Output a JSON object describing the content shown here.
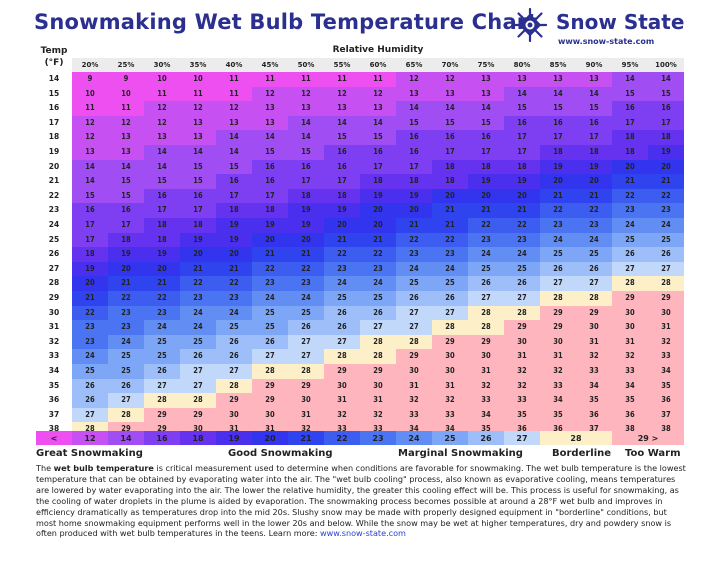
{
  "title": "Snowmaking Wet Bulb Temperature Chart",
  "brand": {
    "name": "Snow State",
    "url": "www.snow-state.com"
  },
  "headers": {
    "temp_line1": "Temp",
    "temp_line2": "(°F)",
    "rh": "Relative Humidity"
  },
  "chart_data": {
    "type": "table",
    "title": "Snowmaking Wet Bulb Temperature Chart",
    "xlabel": "Relative Humidity",
    "ylabel": "Temp (°F)",
    "columns": [
      "20%",
      "25%",
      "30%",
      "35%",
      "40%",
      "45%",
      "50%",
      "55%",
      "60%",
      "65%",
      "70%",
      "75%",
      "80%",
      "85%",
      "90%",
      "95%",
      "100%"
    ],
    "temps": [
      14,
      15,
      16,
      17,
      18,
      19,
      20,
      21,
      22,
      23,
      24,
      25,
      26,
      27,
      28,
      29,
      30,
      31,
      32,
      33,
      34,
      35,
      36,
      37,
      38
    ],
    "values": [
      [
        9,
        9,
        10,
        10,
        11,
        11,
        11,
        11,
        11,
        12,
        12,
        13,
        13,
        13,
        13,
        14,
        14
      ],
      [
        10,
        10,
        11,
        11,
        11,
        12,
        12,
        12,
        12,
        13,
        13,
        13,
        14,
        14,
        14,
        15,
        15
      ],
      [
        11,
        11,
        12,
        12,
        12,
        13,
        13,
        13,
        13,
        14,
        14,
        14,
        15,
        15,
        15,
        16,
        16
      ],
      [
        12,
        12,
        12,
        13,
        13,
        13,
        14,
        14,
        14,
        15,
        15,
        15,
        16,
        16,
        16,
        17,
        17
      ],
      [
        12,
        13,
        13,
        13,
        14,
        14,
        14,
        15,
        15,
        16,
        16,
        16,
        17,
        17,
        17,
        18,
        18
      ],
      [
        13,
        13,
        14,
        14,
        14,
        15,
        15,
        16,
        16,
        16,
        17,
        17,
        17,
        18,
        18,
        18,
        19
      ],
      [
        14,
        14,
        14,
        15,
        15,
        16,
        16,
        16,
        17,
        17,
        18,
        18,
        18,
        19,
        19,
        20,
        20
      ],
      [
        14,
        15,
        15,
        15,
        16,
        16,
        17,
        17,
        18,
        18,
        18,
        19,
        19,
        20,
        20,
        21,
        21
      ],
      [
        15,
        15,
        16,
        16,
        17,
        17,
        18,
        18,
        19,
        19,
        20,
        20,
        20,
        21,
        21,
        22,
        22
      ],
      [
        16,
        16,
        17,
        17,
        18,
        18,
        19,
        19,
        20,
        20,
        21,
        21,
        21,
        22,
        22,
        23,
        23
      ],
      [
        17,
        17,
        18,
        18,
        19,
        19,
        19,
        20,
        20,
        21,
        21,
        22,
        22,
        23,
        23,
        24,
        24
      ],
      [
        17,
        18,
        18,
        19,
        19,
        20,
        20,
        21,
        21,
        22,
        22,
        23,
        23,
        24,
        24,
        25,
        25
      ],
      [
        18,
        19,
        19,
        20,
        20,
        21,
        21,
        22,
        22,
        23,
        23,
        24,
        24,
        25,
        25,
        26,
        26
      ],
      [
        19,
        20,
        20,
        21,
        21,
        22,
        22,
        23,
        23,
        24,
        24,
        25,
        25,
        26,
        26,
        27,
        27
      ],
      [
        20,
        21,
        21,
        22,
        22,
        23,
        23,
        24,
        24,
        25,
        25,
        26,
        26,
        27,
        27,
        28,
        28
      ],
      [
        21,
        22,
        22,
        23,
        23,
        24,
        24,
        25,
        25,
        26,
        26,
        27,
        27,
        28,
        28,
        29,
        29
      ],
      [
        22,
        23,
        23,
        24,
        24,
        25,
        25,
        26,
        26,
        27,
        27,
        28,
        28,
        29,
        29,
        30,
        30
      ],
      [
        23,
        23,
        24,
        24,
        25,
        25,
        26,
        26,
        27,
        27,
        28,
        28,
        29,
        29,
        30,
        30,
        31
      ],
      [
        23,
        24,
        25,
        25,
        26,
        26,
        27,
        27,
        28,
        28,
        29,
        29,
        30,
        30,
        31,
        31,
        32
      ],
      [
        24,
        25,
        25,
        26,
        26,
        27,
        27,
        28,
        28,
        29,
        30,
        30,
        31,
        31,
        32,
        32,
        33
      ],
      [
        25,
        25,
        26,
        27,
        27,
        28,
        28,
        29,
        29,
        30,
        30,
        31,
        32,
        32,
        33,
        33,
        34
      ],
      [
        26,
        26,
        27,
        27,
        28,
        29,
        29,
        30,
        30,
        31,
        31,
        32,
        32,
        33,
        34,
        34,
        35
      ],
      [
        26,
        27,
        28,
        28,
        29,
        29,
        30,
        31,
        31,
        32,
        32,
        33,
        33,
        34,
        35,
        35,
        36
      ],
      [
        27,
        28,
        29,
        29,
        30,
        30,
        31,
        32,
        32,
        33,
        33,
        34,
        35,
        35,
        36,
        36,
        37
      ],
      [
        28,
        29,
        29,
        30,
        31,
        31,
        32,
        33,
        33,
        34,
        34,
        35,
        36,
        36,
        37,
        38,
        38
      ]
    ],
    "color_scale": [
      {
        "label": "<",
        "max": 11,
        "color": "#ee4ff0"
      },
      {
        "label": "12",
        "max": 13,
        "color": "#c750f2"
      },
      {
        "label": "14",
        "max": 15,
        "color": "#a04df3"
      },
      {
        "label": "16",
        "max": 17,
        "color": "#7e3ff2"
      },
      {
        "label": "18",
        "max": 18,
        "color": "#6533ef"
      },
      {
        "label": "19",
        "max": 19,
        "color": "#4a30ee"
      },
      {
        "label": "20",
        "max": 20,
        "color": "#3334ee"
      },
      {
        "label": "21",
        "max": 21,
        "color": "#2f44ee"
      },
      {
        "label": "22",
        "max": 22,
        "color": "#3c5df0"
      },
      {
        "label": "23",
        "max": 23,
        "color": "#4a74f2"
      },
      {
        "label": "24",
        "max": 24,
        "color": "#628ef4"
      },
      {
        "label": "25",
        "max": 25,
        "color": "#7ea6f6"
      },
      {
        "label": "26",
        "max": 26,
        "color": "#9dbef8"
      },
      {
        "label": "27",
        "max": 27,
        "color": "#c2d8fb"
      },
      {
        "label": "28",
        "max": 28,
        "color": "#fdf0c8"
      },
      {
        "label": "29 >",
        "max": 99,
        "color": "#ffb5bd"
      }
    ]
  },
  "categories": [
    "Great Snowmaking",
    "Good Snowmaking",
    "Marginal Snowmaking",
    "Borderline",
    "Too Warm"
  ],
  "description": {
    "p1": "The ",
    "bold": "wet bulb temperature",
    "p2": " is critical measurement used to determine when conditions are favorable for snowmaking. The wet bulb temperature is the lowest temperature that can be obtained by evaporating water into the air. The \"wet bulb cooling\" process, also known as evaporative cooling, means temperatures are lowered by water evaporating into the air. The lower the relative humidity, the greater this cooling effect will be. This process is useful for snowmaking, as the cooling of water droplets in the plume is aided by evaporation. The snowmaking process becomes possible at around a 28°F wet bulb and improves in efficiency dramatically as temperatures drop into the mid 20s. Slushy snow may be made with properly designed equipment in \"borderline\" conditions, but most home snowmaking equipment performs well in the lower 20s and below. While the snow may be wet at higher temperatures, dry and powdery snow is often produced with wet bulb temperatures in the teens. Learn more: ",
    "link": "www.snow-state.com"
  }
}
